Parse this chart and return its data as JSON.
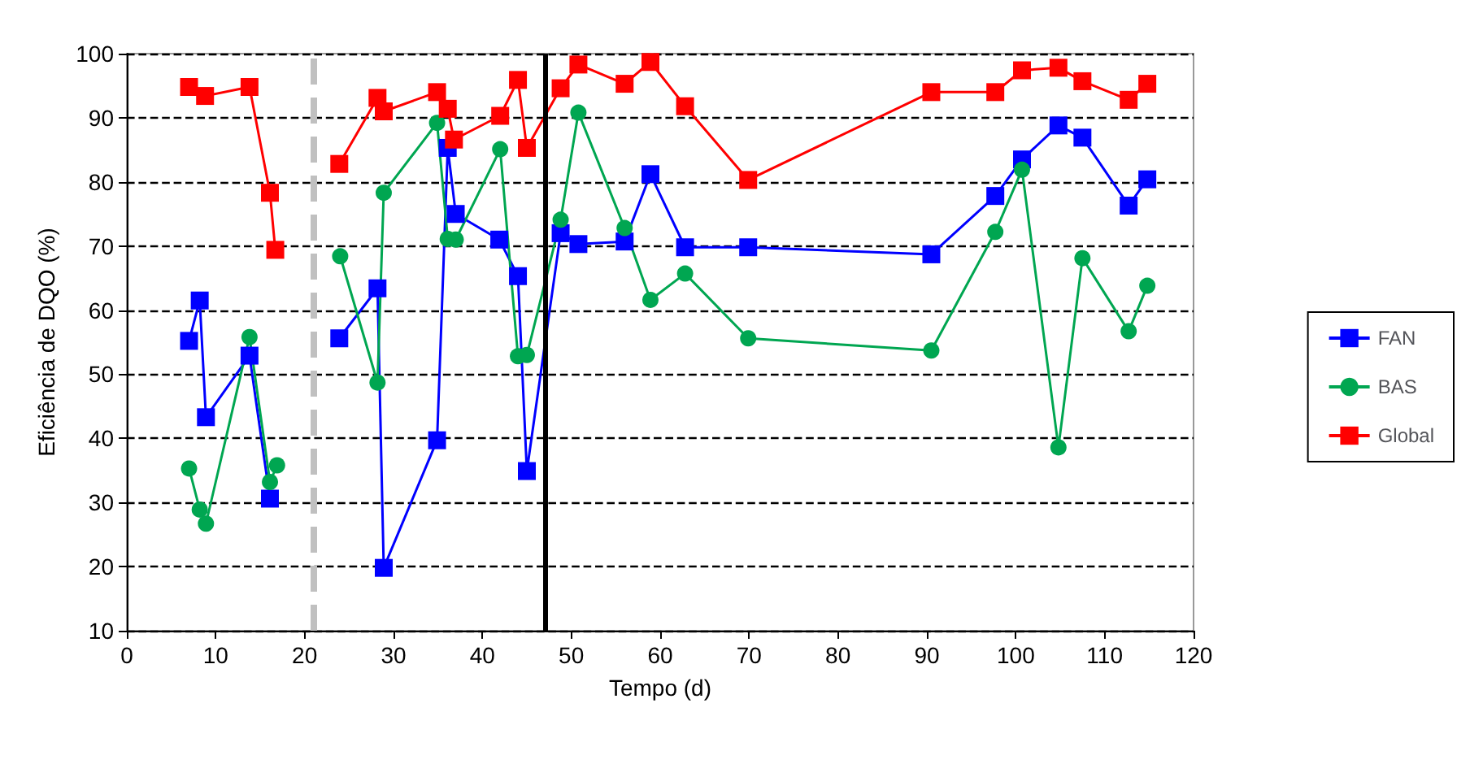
{
  "chart_data": {
    "type": "line",
    "xlabel": "Tempo (d)",
    "ylabel": "Eficiência de DQO (%)",
    "xlim": [
      0,
      120
    ],
    "xticks": [
      0,
      10,
      20,
      30,
      40,
      50,
      60,
      70,
      80,
      90,
      100,
      110,
      120
    ],
    "ylim": [
      10,
      100
    ],
    "yticks": [
      10,
      20,
      30,
      40,
      50,
      60,
      70,
      80,
      90,
      100
    ],
    "grid": "y",
    "legend": "right",
    "line_style": "solid",
    "series": [
      {
        "name": "FAN",
        "color": "#0000ff",
        "marker": "square",
        "x": [
          7,
          8.2,
          8.9,
          13.8,
          16.1,
          20,
          23.9,
          28.2,
          28.9,
          34.9,
          36.1,
          37,
          41.9,
          44,
          45,
          48.8,
          50.8,
          56,
          58.9,
          62.8,
          69.9,
          90.5,
          97.7,
          100.7,
          104.8,
          107.5,
          112.7,
          114.8
        ],
        "values": [
          55.2,
          61.5,
          43.3,
          52.9,
          30.6,
          null,
          55.6,
          63.4,
          19.8,
          39.7,
          85.3,
          75,
          71,
          65.3,
          34.9,
          72,
          70.3,
          70.7,
          81.2,
          69.8,
          69.8,
          68.7,
          77.8,
          83.5,
          88.8,
          86.9,
          76.3,
          80.4
        ]
      },
      {
        "name": "BAS",
        "color": "#00a651",
        "marker": "circle",
        "x": [
          7,
          8.2,
          8.9,
          13.8,
          16.1,
          16.9,
          20,
          24,
          28.2,
          28.9,
          34.9,
          36.1,
          37,
          42,
          44,
          45,
          48.8,
          50.8,
          56,
          58.9,
          62.8,
          69.9,
          90.5,
          97.7,
          100.7,
          104.8,
          107.5,
          112.7,
          114.8
        ],
        "values": [
          35.3,
          28.9,
          26.7,
          55.8,
          33.2,
          35.8,
          null,
          68.4,
          48.7,
          78.3,
          89.2,
          71.1,
          71,
          85.1,
          52.8,
          53,
          74.1,
          90.8,
          72.8,
          61.6,
          65.7,
          55.6,
          53.7,
          72.2,
          81.9,
          38.6,
          68.1,
          56.7,
          63.8
        ]
      },
      {
        "name": "Global",
        "color": "#ff0000",
        "marker": "square",
        "x": [
          7,
          8.8,
          13.8,
          16.1,
          16.7,
          20,
          23.9,
          28.2,
          28.9,
          34.9,
          36.1,
          36.8,
          42,
          44,
          45,
          48.8,
          50.8,
          56,
          58.9,
          62.8,
          69.9,
          90.5,
          97.7,
          100.7,
          104.8,
          107.5,
          112.7,
          114.8
        ],
        "values": [
          94.8,
          93.4,
          94.8,
          78.3,
          69.4,
          null,
          82.8,
          93.1,
          91,
          94,
          91.4,
          86.6,
          90.3,
          95.9,
          85.3,
          94.6,
          98.3,
          95.3,
          98.7,
          91.8,
          80.3,
          94,
          94,
          97.4,
          97.8,
          95.7,
          92.8,
          95.3
        ]
      }
    ],
    "ref_lines": [
      {
        "axis": "x",
        "value": 21,
        "color": "#c0c0c0",
        "line_style": "dashed"
      },
      {
        "axis": "x",
        "value": 47,
        "color": "#000000",
        "line_style": "solid"
      }
    ]
  }
}
